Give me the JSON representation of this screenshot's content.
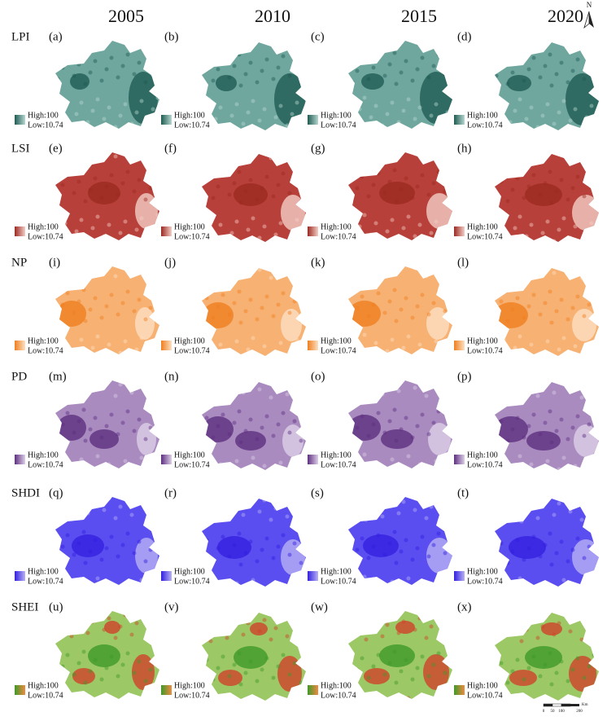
{
  "columns": [
    "2005",
    "2010",
    "2015",
    "2020"
  ],
  "rows": [
    {
      "label": "LPI",
      "panels": [
        {
          "letter": "(a)",
          "high": "High:100",
          "low": "Low:10.74"
        },
        {
          "letter": "(b)",
          "high": "High:100",
          "low": "Low:10.74"
        },
        {
          "letter": "(c)",
          "high": "High:100",
          "low": "Low:10.74"
        },
        {
          "letter": "(d)",
          "high": "High:100",
          "low": "Low:10.74"
        }
      ]
    },
    {
      "label": "LSI",
      "panels": [
        {
          "letter": "(e)",
          "high": "High:100",
          "low": "Low:10.74"
        },
        {
          "letter": "(f)",
          "high": "High:100",
          "low": "Low:10.74"
        },
        {
          "letter": "(g)",
          "high": "High:100",
          "low": "Low:10.74"
        },
        {
          "letter": "(h)",
          "high": "High:100",
          "low": "Low:10.74"
        }
      ]
    },
    {
      "label": "NP",
      "panels": [
        {
          "letter": "(i)",
          "high": "High:100",
          "low": "Low:10.74"
        },
        {
          "letter": "(j)",
          "high": "High:100",
          "low": "Low:10.74"
        },
        {
          "letter": "(k)",
          "high": "High:100",
          "low": "Low:10.74"
        },
        {
          "letter": "(l)",
          "high": "High:100",
          "low": "Low:10.74"
        }
      ]
    },
    {
      "label": "PD",
      "panels": [
        {
          "letter": "(m)",
          "high": "High:100",
          "low": "Low:10.74"
        },
        {
          "letter": "(n)",
          "high": "High:100",
          "low": "Low:10.74"
        },
        {
          "letter": "(o)",
          "high": "High:100",
          "low": "Low:10.74"
        },
        {
          "letter": "(p)",
          "high": "High:100",
          "low": "Low:10.74"
        }
      ]
    },
    {
      "label": "SHDI",
      "panels": [
        {
          "letter": "(q)",
          "high": "High:100",
          "low": "Low:10.74"
        },
        {
          "letter": "(r)",
          "high": "High:100",
          "low": "Low:10.74"
        },
        {
          "letter": "(s)",
          "high": "High:100",
          "low": "Low:10.74"
        },
        {
          "letter": "(t)",
          "high": "High:100",
          "low": "Low:10.74"
        }
      ]
    },
    {
      "label": "SHEI",
      "panels": [
        {
          "letter": "(u)",
          "high": "High:100",
          "low": "Low:10.74"
        },
        {
          "letter": "(v)",
          "high": "High:100",
          "low": "Low:10.74"
        },
        {
          "letter": "(w)",
          "high": "High:100",
          "low": "Low:10.74"
        },
        {
          "letter": "(x)",
          "high": "High:100",
          "low": "Low:10.74"
        }
      ]
    }
  ],
  "north": "N",
  "scale_bar": {
    "labels": [
      "0",
      "50",
      "100",
      "200"
    ],
    "unit": "Km"
  }
}
